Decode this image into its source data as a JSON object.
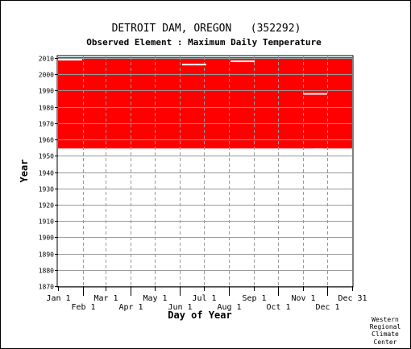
{
  "chart_data": {
    "type": "heatmap",
    "title": "DETROIT DAM, OREGON   (352292)",
    "subtitle": "Observed Element : Maximum Daily Temperature",
    "xlabel": "Day of Year",
    "ylabel": "Year",
    "xlim": [
      1,
      366
    ],
    "ylim": [
      1870,
      2011
    ],
    "y_ticks": [
      1870,
      1880,
      1890,
      1900,
      1910,
      1920,
      1930,
      1940,
      1950,
      1960,
      1970,
      1980,
      1990,
      2000,
      2010
    ],
    "x_ticks_upper": [
      {
        "label": "Jan 1",
        "day": 1
      },
      {
        "label": "Mar 1",
        "day": 60
      },
      {
        "label": "May 1",
        "day": 121
      },
      {
        "label": "Jul 1",
        "day": 182
      },
      {
        "label": "Sep 1",
        "day": 244
      },
      {
        "label": "Nov 1",
        "day": 305
      },
      {
        "label": "Dec 31",
        "day": 366
      }
    ],
    "x_ticks_lower": [
      {
        "label": "Feb 1",
        "day": 32
      },
      {
        "label": "Apr 1",
        "day": 91
      },
      {
        "label": "Jun 1",
        "day": 152
      },
      {
        "label": "Aug 1",
        "day": 213
      },
      {
        "label": "Oct 1",
        "day": 274
      },
      {
        "label": "Dec 1",
        "day": 335
      }
    ],
    "grid": true,
    "data_color": "#ff0000",
    "record": {
      "start_year": 1954.5,
      "end_year": 2010.5,
      "start_day": 1,
      "end_day": 366
    },
    "missing": [
      {
        "year": 2009,
        "day_start": 1,
        "day_end": 31
      },
      {
        "year": 2008,
        "day_start": 215,
        "day_end": 245
      },
      {
        "year": 2006,
        "day_start": 155,
        "day_end": 185
      },
      {
        "year": 1988,
        "day_start": 305,
        "day_end": 335
      },
      {
        "year": 1954,
        "day_start": 318,
        "day_end": 330
      }
    ]
  },
  "credit": [
    "Western",
    "Regional",
    "Climate",
    "Center"
  ]
}
